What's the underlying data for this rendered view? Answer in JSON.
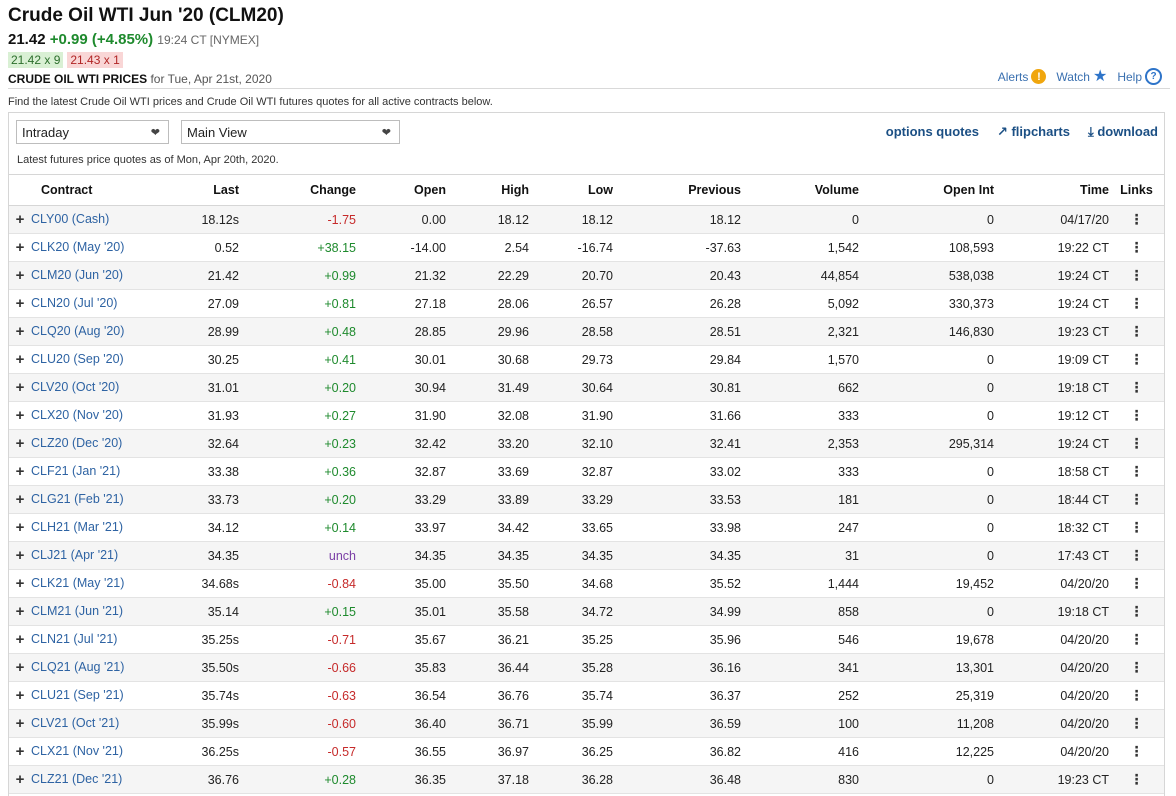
{
  "header": {
    "title": "Crude Oil WTI Jun '20 (CLM20)",
    "last": "21.42",
    "change": "+0.99 (+4.85%)",
    "time": "19:24 CT [NYMEX]",
    "bid": "21.42 x 9",
    "ask": "21.43 x 1"
  },
  "section": {
    "title": "CRUDE OIL WTI PRICES",
    "date": "for Tue, Apr 21st, 2020"
  },
  "util": {
    "alerts": "Alerts",
    "watch": "Watch",
    "help": "Help"
  },
  "description": "Find the latest Crude Oil WTI prices and Crude Oil WTI futures quotes for all active contracts below.",
  "controls": {
    "interval": "Intraday",
    "view": "Main View",
    "options_quotes": "options quotes",
    "flipcharts": "flipcharts",
    "download": "download"
  },
  "asof": "Latest futures price quotes as of Mon, Apr 20th, 2020.",
  "columns": [
    "Contract",
    "Last",
    "Change",
    "Open",
    "High",
    "Low",
    "Previous",
    "Volume",
    "Open Int",
    "Time",
    "Links"
  ],
  "rows": [
    {
      "contract": "CLY00 (Cash)",
      "last": "18.12s",
      "change": "-1.75",
      "open": "0.00",
      "high": "18.12",
      "low": "18.12",
      "previous": "18.12",
      "volume": "0",
      "open_int": "0",
      "time": "04/17/20"
    },
    {
      "contract": "CLK20 (May '20)",
      "last": "0.52",
      "change": "+38.15",
      "open": "-14.00",
      "high": "2.54",
      "low": "-16.74",
      "previous": "-37.63",
      "volume": "1,542",
      "open_int": "108,593",
      "time": "19:22 CT"
    },
    {
      "contract": "CLM20 (Jun '20)",
      "last": "21.42",
      "change": "+0.99",
      "open": "21.32",
      "high": "22.29",
      "low": "20.70",
      "previous": "20.43",
      "volume": "44,854",
      "open_int": "538,038",
      "time": "19:24 CT"
    },
    {
      "contract": "CLN20 (Jul '20)",
      "last": "27.09",
      "change": "+0.81",
      "open": "27.18",
      "high": "28.06",
      "low": "26.57",
      "previous": "26.28",
      "volume": "5,092",
      "open_int": "330,373",
      "time": "19:24 CT"
    },
    {
      "contract": "CLQ20 (Aug '20)",
      "last": "28.99",
      "change": "+0.48",
      "open": "28.85",
      "high": "29.96",
      "low": "28.58",
      "previous": "28.51",
      "volume": "2,321",
      "open_int": "146,830",
      "time": "19:23 CT"
    },
    {
      "contract": "CLU20 (Sep '20)",
      "last": "30.25",
      "change": "+0.41",
      "open": "30.01",
      "high": "30.68",
      "low": "29.73",
      "previous": "29.84",
      "volume": "1,570",
      "open_int": "0",
      "time": "19:09 CT"
    },
    {
      "contract": "CLV20 (Oct '20)",
      "last": "31.01",
      "change": "+0.20",
      "open": "30.94",
      "high": "31.49",
      "low": "30.64",
      "previous": "30.81",
      "volume": "662",
      "open_int": "0",
      "time": "19:18 CT"
    },
    {
      "contract": "CLX20 (Nov '20)",
      "last": "31.93",
      "change": "+0.27",
      "open": "31.90",
      "high": "32.08",
      "low": "31.90",
      "previous": "31.66",
      "volume": "333",
      "open_int": "0",
      "time": "19:12 CT"
    },
    {
      "contract": "CLZ20 (Dec '20)",
      "last": "32.64",
      "change": "+0.23",
      "open": "32.42",
      "high": "33.20",
      "low": "32.10",
      "previous": "32.41",
      "volume": "2,353",
      "open_int": "295,314",
      "time": "19:24 CT"
    },
    {
      "contract": "CLF21 (Jan '21)",
      "last": "33.38",
      "change": "+0.36",
      "open": "32.87",
      "high": "33.69",
      "low": "32.87",
      "previous": "33.02",
      "volume": "333",
      "open_int": "0",
      "time": "18:58 CT"
    },
    {
      "contract": "CLG21 (Feb '21)",
      "last": "33.73",
      "change": "+0.20",
      "open": "33.29",
      "high": "33.89",
      "low": "33.29",
      "previous": "33.53",
      "volume": "181",
      "open_int": "0",
      "time": "18:44 CT"
    },
    {
      "contract": "CLH21 (Mar '21)",
      "last": "34.12",
      "change": "+0.14",
      "open": "33.97",
      "high": "34.42",
      "low": "33.65",
      "previous": "33.98",
      "volume": "247",
      "open_int": "0",
      "time": "18:32 CT"
    },
    {
      "contract": "CLJ21 (Apr '21)",
      "last": "34.35",
      "change": "unch",
      "open": "34.35",
      "high": "34.35",
      "low": "34.35",
      "previous": "34.35",
      "volume": "31",
      "open_int": "0",
      "time": "17:43 CT"
    },
    {
      "contract": "CLK21 (May '21)",
      "last": "34.68s",
      "change": "-0.84",
      "open": "35.00",
      "high": "35.50",
      "low": "34.68",
      "previous": "35.52",
      "volume": "1,444",
      "open_int": "19,452",
      "time": "04/20/20"
    },
    {
      "contract": "CLM21 (Jun '21)",
      "last": "35.14",
      "change": "+0.15",
      "open": "35.01",
      "high": "35.58",
      "low": "34.72",
      "previous": "34.99",
      "volume": "858",
      "open_int": "0",
      "time": "19:18 CT"
    },
    {
      "contract": "CLN21 (Jul '21)",
      "last": "35.25s",
      "change": "-0.71",
      "open": "35.67",
      "high": "36.21",
      "low": "35.25",
      "previous": "35.96",
      "volume": "546",
      "open_int": "19,678",
      "time": "04/20/20"
    },
    {
      "contract": "CLQ21 (Aug '21)",
      "last": "35.50s",
      "change": "-0.66",
      "open": "35.83",
      "high": "36.44",
      "low": "35.28",
      "previous": "36.16",
      "volume": "341",
      "open_int": "13,301",
      "time": "04/20/20"
    },
    {
      "contract": "CLU21 (Sep '21)",
      "last": "35.74s",
      "change": "-0.63",
      "open": "36.54",
      "high": "36.76",
      "low": "35.74",
      "previous": "36.37",
      "volume": "252",
      "open_int": "25,319",
      "time": "04/20/20"
    },
    {
      "contract": "CLV21 (Oct '21)",
      "last": "35.99s",
      "change": "-0.60",
      "open": "36.40",
      "high": "36.71",
      "low": "35.99",
      "previous": "36.59",
      "volume": "100",
      "open_int": "11,208",
      "time": "04/20/20"
    },
    {
      "contract": "CLX21 (Nov '21)",
      "last": "36.25s",
      "change": "-0.57",
      "open": "36.55",
      "high": "36.97",
      "low": "36.25",
      "previous": "36.82",
      "volume": "416",
      "open_int": "12,225",
      "time": "04/20/20"
    },
    {
      "contract": "CLZ21 (Dec '21)",
      "last": "36.76",
      "change": "+0.28",
      "open": "36.35",
      "high": "37.18",
      "low": "36.28",
      "previous": "36.48",
      "volume": "830",
      "open_int": "0",
      "time": "19:23 CT"
    }
  ],
  "colors": {
    "positive": "#1e8a2d",
    "negative": "#c62a2a",
    "unchanged": "#7b3fa6",
    "link": "#2e63a3"
  },
  "icons": {
    "expand": "plus-icon",
    "row_menu": "vertical-dots-icon",
    "alerts": "alert-icon",
    "watch": "star-icon",
    "help": "help-icon",
    "flipcharts": "chart-line-icon",
    "download": "download-icon"
  }
}
